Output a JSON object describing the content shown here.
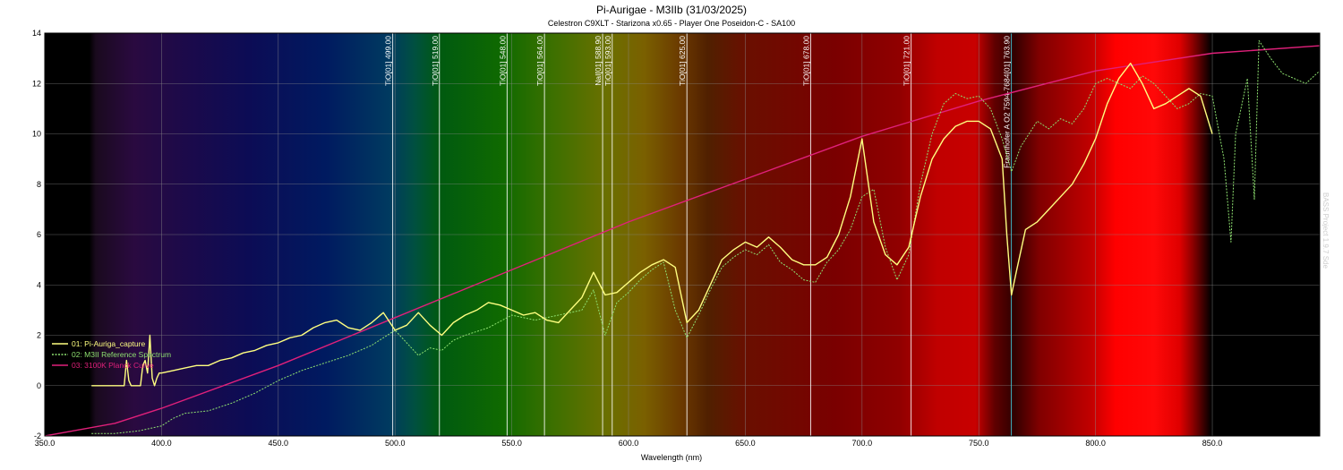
{
  "chart_data": {
    "type": "line",
    "title": "Pi-Aurigae - M3IIb (31/03/2025)",
    "subtitle": "Celestron C9XLT - Starizona x0.65 - Player One Poseidon-C - SA100",
    "xlabel": "Wavelength (nm)",
    "ylabel": "",
    "xlim": [
      350,
      896
    ],
    "ylim": [
      -2,
      14
    ],
    "x_ticks": [
      "350.0",
      "400.0",
      "450.0",
      "500.0",
      "550.0",
      "600.0",
      "650.0",
      "700.0",
      "750.0",
      "800.0",
      "850.0"
    ],
    "y_ticks": [
      "-2",
      "0",
      "2",
      "4",
      "6",
      "8",
      "10",
      "12",
      "14"
    ],
    "grid": true,
    "legend_position": "bottom-left",
    "watermark": "BASS Project 1.9.7 Sde",
    "reference_lines": [
      {
        "x": 499.0,
        "label": "TiO[01] 499.00"
      },
      {
        "x": 519.0,
        "label": "TiO[01] 519.00"
      },
      {
        "x": 548.0,
        "label": "TiO[01] 548.00"
      },
      {
        "x": 564.0,
        "label": "TiO[01] 564.00"
      },
      {
        "x": 588.9,
        "label": "NaI[01] 588.90"
      },
      {
        "x": 593.0,
        "label": "TiO[01] 593.00"
      },
      {
        "x": 625.0,
        "label": "TiO[01] 625.00"
      },
      {
        "x": 678.0,
        "label": "TiO[01] 678.00"
      },
      {
        "x": 721.0,
        "label": "TiO[01] 721.00"
      },
      {
        "x": 763.9,
        "label": "Fraunhofer A O2 7594-7684[01] 763.90"
      }
    ],
    "series": [
      {
        "name": "01: Pi-Auriga_capture",
        "color": "#ffff80",
        "style": "solid",
        "x": [
          370,
          384,
          385,
          386,
          387,
          389,
          390,
          391,
          392,
          393,
          394,
          395,
          396,
          397,
          398,
          399,
          400,
          405,
          410,
          415,
          420,
          425,
          430,
          435,
          440,
          445,
          450,
          455,
          460,
          465,
          470,
          475,
          480,
          485,
          490,
          495,
          500,
          505,
          510,
          515,
          520,
          525,
          530,
          535,
          540,
          545,
          550,
          555,
          560,
          565,
          570,
          575,
          580,
          585,
          590,
          595,
          600,
          605,
          610,
          615,
          620,
          625,
          630,
          635,
          640,
          645,
          650,
          655,
          660,
          665,
          670,
          675,
          680,
          685,
          690,
          695,
          700,
          705,
          710,
          715,
          720,
          725,
          730,
          735,
          740,
          745,
          750,
          755,
          760,
          762,
          764,
          766,
          770,
          775,
          780,
          785,
          790,
          795,
          800,
          805,
          810,
          815,
          820,
          825,
          830,
          835,
          840,
          845,
          850
        ],
        "y": [
          0,
          0,
          1,
          0.2,
          0,
          0,
          0,
          0,
          0.8,
          1,
          0.5,
          2.0,
          0.3,
          0,
          0.3,
          0.5,
          0.5,
          0.6,
          0.7,
          0.8,
          0.8,
          1.0,
          1.1,
          1.3,
          1.4,
          1.6,
          1.7,
          1.9,
          2.0,
          2.3,
          2.5,
          2.6,
          2.3,
          2.2,
          2.5,
          2.9,
          2.2,
          2.4,
          2.9,
          2.4,
          2.0,
          2.5,
          2.8,
          3.0,
          3.3,
          3.2,
          3.0,
          2.8,
          2.9,
          2.6,
          2.5,
          3.0,
          3.5,
          4.5,
          3.6,
          3.7,
          4.1,
          4.5,
          4.8,
          5.0,
          4.7,
          2.5,
          3.0,
          4.0,
          5.0,
          5.4,
          5.7,
          5.5,
          5.9,
          5.5,
          5.0,
          4.8,
          4.8,
          5.1,
          6.0,
          7.5,
          9.8,
          6.5,
          5.2,
          4.8,
          5.5,
          7.5,
          9.0,
          9.8,
          10.3,
          10.5,
          10.5,
          10.2,
          9.0,
          6.0,
          3.6,
          4.5,
          6.2,
          6.5,
          7.0,
          7.5,
          8.0,
          8.8,
          9.8,
          11.2,
          12.2,
          12.8,
          12.0,
          11.0,
          11.2,
          11.5,
          11.8,
          11.5,
          10.0
        ]
      },
      {
        "name": "02: M3II Reference Spectrum",
        "color": "#8ee070",
        "style": "dashed",
        "x": [
          370,
          380,
          390,
          400,
          405,
          410,
          420,
          430,
          440,
          450,
          460,
          470,
          480,
          490,
          495,
          500,
          505,
          510,
          515,
          520,
          525,
          530,
          540,
          550,
          560,
          570,
          580,
          585,
          590,
          595,
          600,
          605,
          610,
          615,
          620,
          625,
          630,
          635,
          640,
          645,
          650,
          655,
          660,
          665,
          670,
          675,
          680,
          685,
          690,
          695,
          700,
          705,
          710,
          715,
          720,
          725,
          730,
          735,
          740,
          745,
          750,
          755,
          760,
          764,
          768,
          775,
          780,
          785,
          790,
          795,
          800,
          805,
          810,
          815,
          820,
          825,
          830,
          835,
          840,
          845,
          850,
          855,
          858,
          860,
          865,
          868,
          870,
          875,
          880,
          890,
          896
        ],
        "y": [
          -1.9,
          -1.9,
          -1.8,
          -1.6,
          -1.3,
          -1.1,
          -1.0,
          -0.7,
          -0.3,
          0.2,
          0.6,
          0.9,
          1.2,
          1.6,
          1.9,
          2.2,
          1.7,
          1.2,
          1.5,
          1.4,
          1.8,
          2.0,
          2.3,
          2.8,
          2.6,
          2.8,
          3.0,
          3.8,
          2.0,
          3.3,
          3.7,
          4.2,
          4.6,
          4.9,
          3.0,
          1.9,
          2.8,
          3.8,
          4.7,
          5.1,
          5.4,
          5.2,
          5.6,
          4.9,
          4.6,
          4.2,
          4.1,
          4.9,
          5.4,
          6.2,
          7.5,
          7.8,
          5.5,
          4.2,
          5.2,
          8.0,
          10.0,
          11.2,
          11.6,
          11.4,
          11.5,
          11.0,
          9.8,
          8.5,
          9.5,
          10.5,
          10.2,
          10.6,
          10.4,
          11.0,
          12.0,
          12.2,
          12.0,
          11.8,
          12.3,
          12.0,
          11.5,
          11.0,
          11.2,
          11.6,
          11.5,
          9.0,
          5.7,
          10.0,
          12.2,
          7.4,
          13.7,
          13.0,
          12.4,
          12.0,
          12.5
        ]
      },
      {
        "name": "03: 3100K Planck Curve",
        "color": "#e0207a",
        "style": "solid",
        "x": [
          350,
          380,
          400,
          450,
          500,
          550,
          600,
          650,
          700,
          750,
          800,
          850,
          896
        ],
        "y": [
          -2.0,
          -1.5,
          -0.9,
          0.8,
          2.7,
          4.6,
          6.5,
          8.2,
          9.9,
          11.3,
          12.5,
          13.2,
          13.5
        ]
      }
    ]
  }
}
